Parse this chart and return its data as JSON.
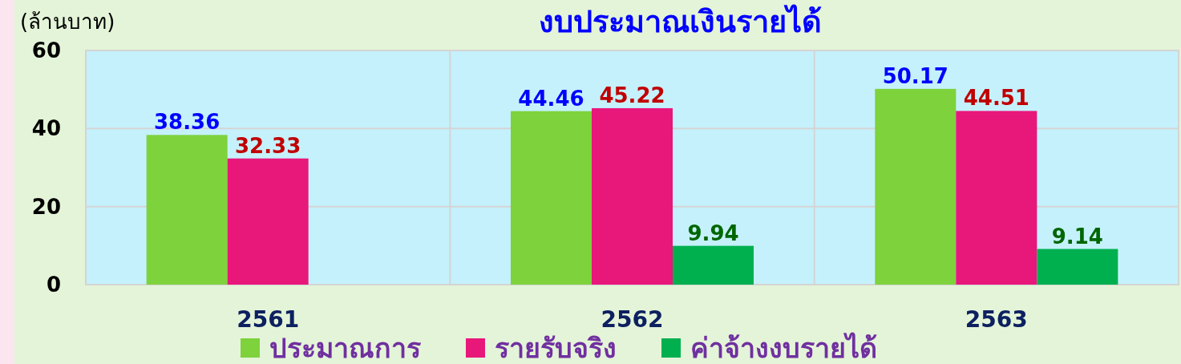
{
  "chart_data": {
    "type": "bar",
    "title": "งบประมาณเงินรายได้",
    "ylabel": "(ล้านบาท)",
    "categories": [
      "2561",
      "2562",
      "2563"
    ],
    "series": [
      {
        "name": "ประมาณการ",
        "color": "#7ed23c",
        "values": [
          38.36,
          44.46,
          50.17
        ]
      },
      {
        "name": "รายรับจริง",
        "color": "#e8177a",
        "values": [
          32.33,
          45.22,
          44.51
        ]
      },
      {
        "name": "ค่าจ้างงบรายได้",
        "color": "#00b04f",
        "values": [
          null,
          9.94,
          9.14
        ]
      }
    ],
    "ylim": [
      0,
      60
    ],
    "yticks": [
      0,
      20,
      40,
      60
    ],
    "grid": true,
    "legend": "bottom",
    "data_labels": true
  }
}
